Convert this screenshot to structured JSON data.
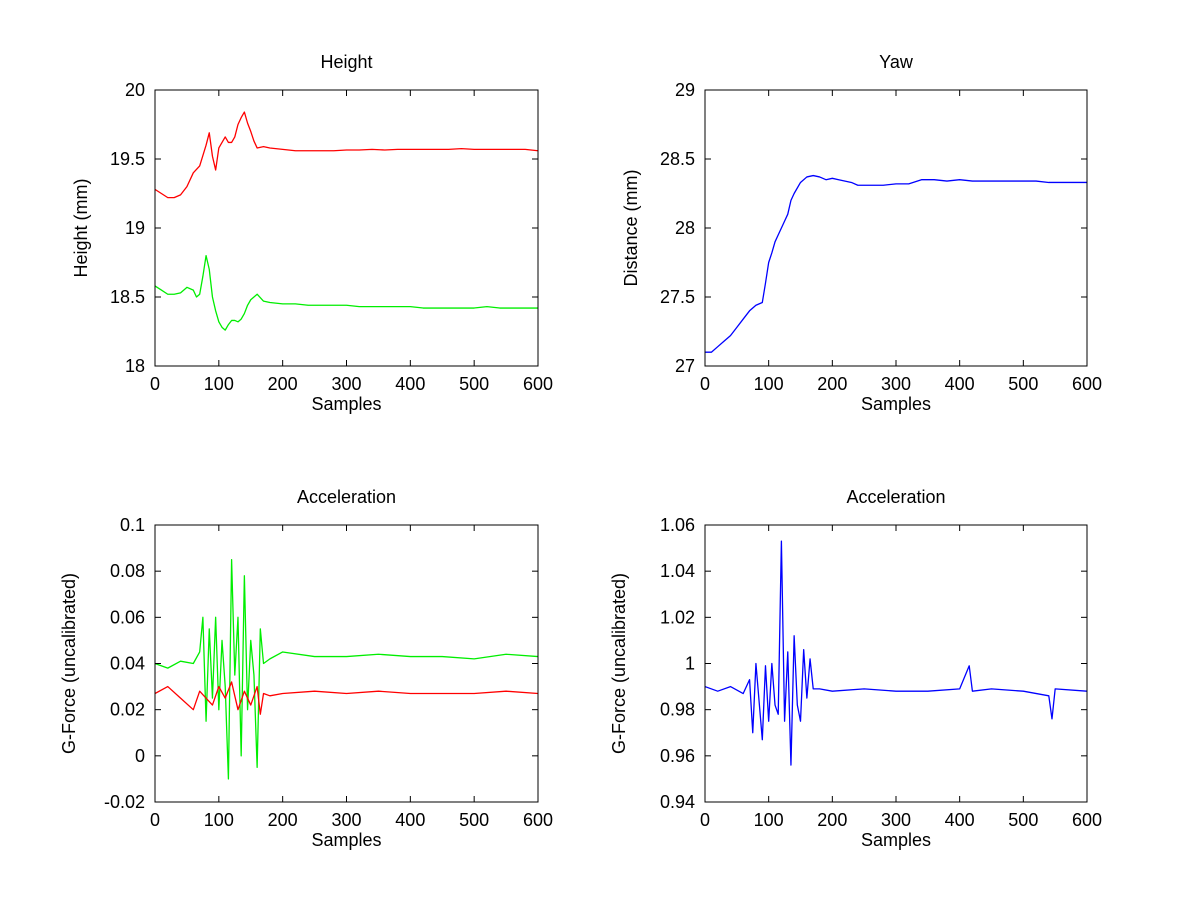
{
  "chart_data": [
    {
      "type": "line",
      "title": "Height",
      "xlabel": "Samples",
      "ylabel": "Height (mm)",
      "xlim": [
        0,
        600
      ],
      "ylim": [
        18,
        20
      ],
      "xticks": [
        "0",
        "100",
        "200",
        "300",
        "400",
        "500",
        "600"
      ],
      "yticks": [
        "18",
        "18.5",
        "19",
        "19.5",
        "20"
      ],
      "grid": false,
      "series": [
        {
          "color": "#ff0000",
          "x": [
            0,
            10,
            20,
            30,
            40,
            50,
            60,
            70,
            80,
            85,
            90,
            95,
            100,
            110,
            115,
            120,
            125,
            130,
            135,
            140,
            145,
            150,
            155,
            160,
            170,
            180,
            200,
            220,
            240,
            260,
            280,
            300,
            320,
            340,
            360,
            380,
            400,
            420,
            440,
            460,
            480,
            500,
            520,
            540,
            560,
            580,
            600
          ],
          "values": [
            19.28,
            19.25,
            19.22,
            19.22,
            19.24,
            19.3,
            19.4,
            19.45,
            19.6,
            19.69,
            19.52,
            19.42,
            19.58,
            19.66,
            19.62,
            19.62,
            19.66,
            19.75,
            19.8,
            19.84,
            19.76,
            19.7,
            19.63,
            19.58,
            19.59,
            19.58,
            19.57,
            19.56,
            19.56,
            19.56,
            19.56,
            19.565,
            19.565,
            19.57,
            19.565,
            19.57,
            19.57,
            19.57,
            19.57,
            19.57,
            19.575,
            19.57,
            19.57,
            19.57,
            19.57,
            19.57,
            19.56
          ]
        },
        {
          "color": "#00ee00",
          "x": [
            0,
            10,
            20,
            30,
            40,
            50,
            60,
            65,
            70,
            75,
            80,
            85,
            90,
            95,
            100,
            105,
            110,
            115,
            120,
            125,
            130,
            135,
            140,
            145,
            150,
            155,
            160,
            170,
            180,
            200,
            220,
            240,
            260,
            280,
            300,
            320,
            340,
            360,
            380,
            400,
            420,
            440,
            460,
            480,
            500,
            520,
            540,
            560,
            580,
            600
          ],
          "values": [
            18.58,
            18.55,
            18.52,
            18.52,
            18.53,
            18.57,
            18.55,
            18.5,
            18.52,
            18.65,
            18.8,
            18.7,
            18.5,
            18.4,
            18.32,
            18.28,
            18.26,
            18.3,
            18.33,
            18.33,
            18.32,
            18.34,
            18.38,
            18.44,
            18.48,
            18.5,
            18.52,
            18.47,
            18.46,
            18.45,
            18.45,
            18.44,
            18.44,
            18.44,
            18.44,
            18.43,
            18.43,
            18.43,
            18.43,
            18.43,
            18.42,
            18.42,
            18.42,
            18.42,
            18.42,
            18.43,
            18.42,
            18.42,
            18.42,
            18.42
          ]
        }
      ]
    },
    {
      "type": "line",
      "title": "Yaw",
      "xlabel": "Samples",
      "ylabel": "Distance (mm)",
      "xlim": [
        0,
        600
      ],
      "ylim": [
        27,
        29
      ],
      "xticks": [
        "0",
        "100",
        "200",
        "300",
        "400",
        "500",
        "600"
      ],
      "yticks": [
        "27",
        "27.5",
        "28",
        "28.5",
        "29"
      ],
      "grid": false,
      "series": [
        {
          "color": "#0000ff",
          "x": [
            0,
            10,
            20,
            30,
            40,
            50,
            60,
            70,
            80,
            90,
            95,
            100,
            105,
            110,
            115,
            120,
            125,
            130,
            135,
            140,
            150,
            160,
            170,
            180,
            190,
            200,
            210,
            220,
            230,
            240,
            260,
            280,
            300,
            320,
            340,
            360,
            380,
            400,
            420,
            440,
            460,
            480,
            500,
            520,
            540,
            560,
            580,
            600
          ],
          "values": [
            27.1,
            27.1,
            27.14,
            27.18,
            27.22,
            27.28,
            27.34,
            27.4,
            27.44,
            27.46,
            27.6,
            27.75,
            27.82,
            27.9,
            27.95,
            28.0,
            28.05,
            28.1,
            28.2,
            28.25,
            28.33,
            28.37,
            28.38,
            28.37,
            28.35,
            28.36,
            28.35,
            28.34,
            28.33,
            28.31,
            28.31,
            28.31,
            28.32,
            28.32,
            28.35,
            28.35,
            28.34,
            28.35,
            28.34,
            28.34,
            28.34,
            28.34,
            28.34,
            28.34,
            28.33,
            28.33,
            28.33,
            28.33
          ]
        }
      ]
    },
    {
      "type": "line",
      "title": "Acceleration",
      "xlabel": "Samples",
      "ylabel": "G-Force (uncalibrated)",
      "xlim": [
        0,
        600
      ],
      "ylim": [
        -0.02,
        0.1
      ],
      "xticks": [
        "0",
        "100",
        "200",
        "300",
        "400",
        "500",
        "600"
      ],
      "yticks": [
        "-0.02",
        "0",
        "0.02",
        "0.04",
        "0.06",
        "0.08",
        "0.1"
      ],
      "grid": false,
      "series": [
        {
          "color": "#00ee00",
          "x": [
            0,
            20,
            40,
            60,
            70,
            75,
            80,
            85,
            90,
            95,
            100,
            105,
            110,
            115,
            120,
            125,
            130,
            135,
            140,
            145,
            150,
            155,
            160,
            165,
            170,
            180,
            200,
            250,
            300,
            350,
            400,
            450,
            500,
            550,
            600
          ],
          "values": [
            0.04,
            0.038,
            0.041,
            0.04,
            0.045,
            0.06,
            0.015,
            0.055,
            0.025,
            0.06,
            0.02,
            0.05,
            0.03,
            -0.01,
            0.085,
            0.035,
            0.06,
            0.0,
            0.078,
            0.02,
            0.05,
            0.035,
            -0.005,
            0.055,
            0.04,
            0.042,
            0.045,
            0.043,
            0.043,
            0.044,
            0.043,
            0.043,
            0.042,
            0.044,
            0.043
          ]
        },
        {
          "color": "#ff0000",
          "x": [
            0,
            20,
            40,
            60,
            70,
            80,
            90,
            100,
            110,
            120,
            130,
            140,
            150,
            160,
            165,
            170,
            180,
            200,
            250,
            300,
            350,
            400,
            450,
            500,
            550,
            600
          ],
          "values": [
            0.027,
            0.03,
            0.025,
            0.02,
            0.028,
            0.025,
            0.022,
            0.03,
            0.025,
            0.032,
            0.02,
            0.028,
            0.022,
            0.03,
            0.018,
            0.027,
            0.026,
            0.027,
            0.028,
            0.027,
            0.028,
            0.027,
            0.027,
            0.027,
            0.028,
            0.027
          ]
        }
      ]
    },
    {
      "type": "line",
      "title": "Acceleration",
      "xlabel": "Samples",
      "ylabel": "G-Force (uncalibrated)",
      "xlim": [
        0,
        600
      ],
      "ylim": [
        0.94,
        1.06
      ],
      "xticks": [
        "0",
        "100",
        "200",
        "300",
        "400",
        "500",
        "600"
      ],
      "yticks": [
        "0.94",
        "0.96",
        "0.98",
        "1",
        "1.02",
        "1.04",
        "1.06"
      ],
      "grid": false,
      "series": [
        {
          "color": "#0000ff",
          "x": [
            0,
            20,
            40,
            60,
            70,
            75,
            80,
            90,
            95,
            100,
            105,
            110,
            115,
            120,
            125,
            130,
            135,
            140,
            145,
            150,
            155,
            160,
            165,
            170,
            180,
            200,
            250,
            300,
            350,
            400,
            415,
            420,
            450,
            500,
            540,
            545,
            550,
            600
          ],
          "values": [
            0.99,
            0.988,
            0.99,
            0.987,
            0.993,
            0.97,
            1.0,
            0.967,
            0.999,
            0.975,
            1.0,
            0.982,
            0.978,
            1.053,
            0.975,
            1.005,
            0.956,
            1.012,
            0.982,
            0.975,
            1.006,
            0.985,
            1.002,
            0.989,
            0.989,
            0.988,
            0.989,
            0.988,
            0.988,
            0.989,
            0.999,
            0.988,
            0.989,
            0.988,
            0.986,
            0.976,
            0.989,
            0.988
          ]
        }
      ]
    }
  ]
}
